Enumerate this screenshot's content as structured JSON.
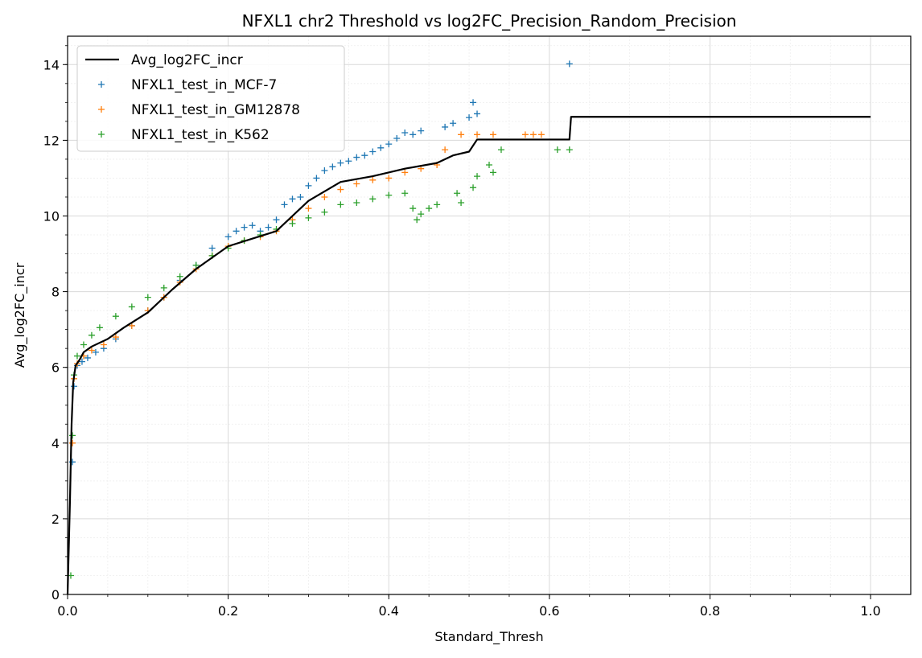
{
  "chart_data": {
    "type": "scatter",
    "title": "NFXL1 chr2 Threshold vs log2FC_Precision_Random_Precision",
    "xlabel": "Standard_Thresh",
    "ylabel": "Avg_log2FC_incr",
    "xlim": [
      0.0,
      1.05
    ],
    "ylim": [
      0,
      14.75
    ],
    "xticks": [
      0.0,
      0.2,
      0.4,
      0.6,
      0.8,
      1.0
    ],
    "xtick_labels": [
      "0.0",
      "0.2",
      "0.4",
      "0.6",
      "0.8",
      "1.0"
    ],
    "yticks": [
      0,
      2,
      4,
      6,
      8,
      10,
      12,
      14
    ],
    "ytick_labels": [
      "0",
      "2",
      "4",
      "6",
      "8",
      "10",
      "12",
      "14"
    ],
    "grid": true,
    "minor_grid": true,
    "legend_position": "top-left",
    "line": {
      "name": "Avg_log2FC_incr",
      "color": "#000000",
      "x": [
        0.0,
        0.003,
        0.005,
        0.007,
        0.01,
        0.015,
        0.02,
        0.03,
        0.05,
        0.07,
        0.1,
        0.13,
        0.16,
        0.2,
        0.23,
        0.26,
        0.3,
        0.34,
        0.38,
        0.42,
        0.46,
        0.48,
        0.5,
        0.51,
        0.625,
        0.627,
        1.0
      ],
      "y": [
        0.0,
        2.5,
        4.5,
        5.6,
        6.05,
        6.2,
        6.4,
        6.55,
        6.75,
        7.05,
        7.45,
        8.05,
        8.6,
        9.2,
        9.4,
        9.6,
        10.4,
        10.9,
        11.05,
        11.25,
        11.4,
        11.6,
        11.7,
        12.02,
        12.02,
        12.62,
        12.62
      ]
    },
    "series": [
      {
        "name": "NFXL1_test_in_MCF-7",
        "color": "#1f77b4",
        "x": [
          0.006,
          0.008,
          0.012,
          0.018,
          0.025,
          0.035,
          0.045,
          0.06,
          0.08,
          0.1,
          0.12,
          0.14,
          0.16,
          0.18,
          0.2,
          0.21,
          0.22,
          0.23,
          0.24,
          0.25,
          0.26,
          0.27,
          0.28,
          0.29,
          0.3,
          0.31,
          0.32,
          0.33,
          0.34,
          0.35,
          0.36,
          0.37,
          0.38,
          0.39,
          0.4,
          0.41,
          0.42,
          0.43,
          0.44,
          0.47,
          0.48,
          0.5,
          0.505,
          0.51,
          0.625
        ],
        "y": [
          3.5,
          5.5,
          6.05,
          6.15,
          6.25,
          6.4,
          6.5,
          6.75,
          7.1,
          7.5,
          7.85,
          8.3,
          8.7,
          9.15,
          9.45,
          9.6,
          9.7,
          9.75,
          9.6,
          9.7,
          9.9,
          10.3,
          10.45,
          10.5,
          10.8,
          11.0,
          11.2,
          11.3,
          11.4,
          11.45,
          11.55,
          11.6,
          11.7,
          11.8,
          11.9,
          12.05,
          12.2,
          12.15,
          12.25,
          12.35,
          12.45,
          12.6,
          13.0,
          12.7,
          14.02
        ]
      },
      {
        "name": "NFXL1_test_in_GM12878",
        "color": "#ff7f0e",
        "x": [
          0.006,
          0.008,
          0.012,
          0.02,
          0.03,
          0.045,
          0.06,
          0.08,
          0.1,
          0.12,
          0.14,
          0.16,
          0.18,
          0.2,
          0.22,
          0.24,
          0.26,
          0.28,
          0.3,
          0.32,
          0.34,
          0.36,
          0.38,
          0.4,
          0.42,
          0.44,
          0.46,
          0.47,
          0.49,
          0.51,
          0.53,
          0.57,
          0.58,
          0.59
        ],
        "y": [
          4.0,
          5.7,
          6.1,
          6.3,
          6.45,
          6.6,
          6.8,
          7.1,
          7.5,
          7.85,
          8.25,
          8.6,
          8.95,
          9.2,
          9.35,
          9.45,
          9.6,
          9.9,
          10.2,
          10.5,
          10.7,
          10.85,
          10.95,
          11.0,
          11.15,
          11.25,
          11.35,
          11.75,
          12.15,
          12.15,
          12.15,
          12.15,
          12.15,
          12.15
        ]
      },
      {
        "name": "NFXL1_test_in_K562",
        "color": "#2ca02c",
        "x": [
          0.004,
          0.006,
          0.008,
          0.012,
          0.02,
          0.03,
          0.04,
          0.06,
          0.08,
          0.1,
          0.12,
          0.14,
          0.16,
          0.18,
          0.2,
          0.22,
          0.24,
          0.26,
          0.28,
          0.3,
          0.32,
          0.34,
          0.36,
          0.38,
          0.4,
          0.42,
          0.43,
          0.435,
          0.44,
          0.45,
          0.46,
          0.485,
          0.49,
          0.505,
          0.51,
          0.525,
          0.53,
          0.54,
          0.61,
          0.625
        ],
        "y": [
          0.5,
          4.2,
          5.8,
          6.3,
          6.6,
          6.85,
          7.05,
          7.35,
          7.6,
          7.85,
          8.1,
          8.4,
          8.7,
          8.95,
          9.15,
          9.35,
          9.5,
          9.65,
          9.8,
          9.95,
          10.1,
          10.3,
          10.35,
          10.45,
          10.55,
          10.6,
          10.2,
          9.9,
          10.05,
          10.2,
          10.3,
          10.6,
          10.35,
          10.75,
          11.05,
          11.35,
          11.15,
          11.75,
          11.75,
          11.75
        ]
      }
    ]
  }
}
